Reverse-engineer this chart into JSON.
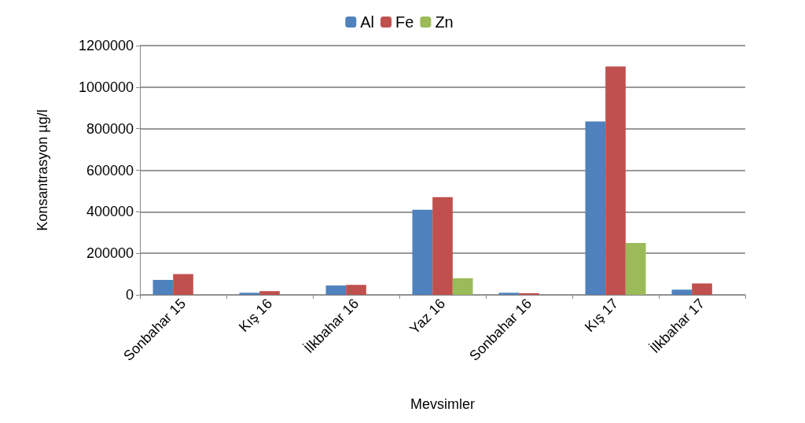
{
  "chart_data": {
    "type": "bar",
    "xlabel": "Mevsimler",
    "ylabel": "Konsantrasyon µg/l",
    "categories": [
      "Sonbahar 15",
      "Kış 16",
      "İlkbahar 16",
      "Yaz 16",
      "Sonbahar 16",
      "Kış 17",
      "İlkbahar 17"
    ],
    "series": [
      {
        "name": "Al",
        "color": "#4f81bd",
        "values": [
          72000,
          10000,
          45000,
          410000,
          10000,
          835000,
          25000
        ]
      },
      {
        "name": "Fe",
        "color": "#c0504d",
        "values": [
          100000,
          18000,
          48000,
          470000,
          8000,
          1100000,
          55000
        ]
      },
      {
        "name": "Zn",
        "color": "#9bbb59",
        "values": [
          null,
          null,
          null,
          80000,
          null,
          250000,
          null
        ]
      }
    ],
    "ylim": [
      0,
      1200000
    ],
    "yticks": [
      0,
      200000,
      400000,
      600000,
      800000,
      1000000,
      1200000
    ],
    "grid": "y",
    "legend": "top"
  }
}
